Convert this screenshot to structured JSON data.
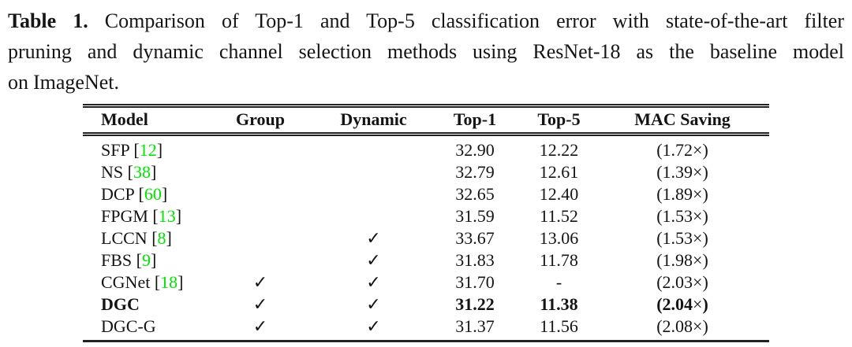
{
  "caption": {
    "label": "Table 1.",
    "lines": [
      "Comparison of Top-1 and Top-5 classification error with state-of-the-art filter",
      "pruning and dynamic channel selection methods using ResNet-18 as the baseline model",
      "on ImageNet."
    ]
  },
  "table": {
    "headers": [
      "Model",
      "Group",
      "Dynamic",
      "Top-1",
      "Top-5",
      "MAC Saving"
    ],
    "check_glyph": "✓",
    "colors": {
      "citation_green": "#00e400",
      "text": "#141414",
      "rule": "#222222"
    },
    "rows": [
      {
        "model": "SFP",
        "cite": "12",
        "group": false,
        "dynamic": false,
        "top1": "32.90",
        "top5": "12.22",
        "mac": "(1.72×)",
        "bold": false
      },
      {
        "model": "NS",
        "cite": "38",
        "group": false,
        "dynamic": false,
        "top1": "32.79",
        "top5": "12.61",
        "mac": "(1.39×)",
        "bold": false
      },
      {
        "model": "DCP",
        "cite": "60",
        "group": false,
        "dynamic": false,
        "top1": "32.65",
        "top5": "12.40",
        "mac": "(1.89×)",
        "bold": false
      },
      {
        "model": "FPGM",
        "cite": "13",
        "group": false,
        "dynamic": false,
        "top1": "31.59",
        "top5": "11.52",
        "mac": "(1.53×)",
        "bold": false
      },
      {
        "model": "LCCN",
        "cite": "8",
        "group": false,
        "dynamic": true,
        "top1": "33.67",
        "top5": "13.06",
        "mac": "(1.53×)",
        "bold": false
      },
      {
        "model": "FBS",
        "cite": "9",
        "group": false,
        "dynamic": true,
        "top1": "31.83",
        "top5": "11.78",
        "mac": "(1.98×)",
        "bold": false
      },
      {
        "model": "CGNet",
        "cite": "18",
        "group": true,
        "dynamic": true,
        "top1": "31.70",
        "top5": "-",
        "mac": "(2.03×)",
        "bold": false
      },
      {
        "model": "DGC",
        "cite": null,
        "group": true,
        "dynamic": true,
        "top1": "31.22",
        "top5": "11.38",
        "mac": "(2.04×)",
        "bold": true
      },
      {
        "model": "DGC-G",
        "cite": null,
        "group": true,
        "dynamic": true,
        "top1": "31.37",
        "top5": "11.56",
        "mac": "(2.08×)",
        "bold": false
      }
    ]
  }
}
